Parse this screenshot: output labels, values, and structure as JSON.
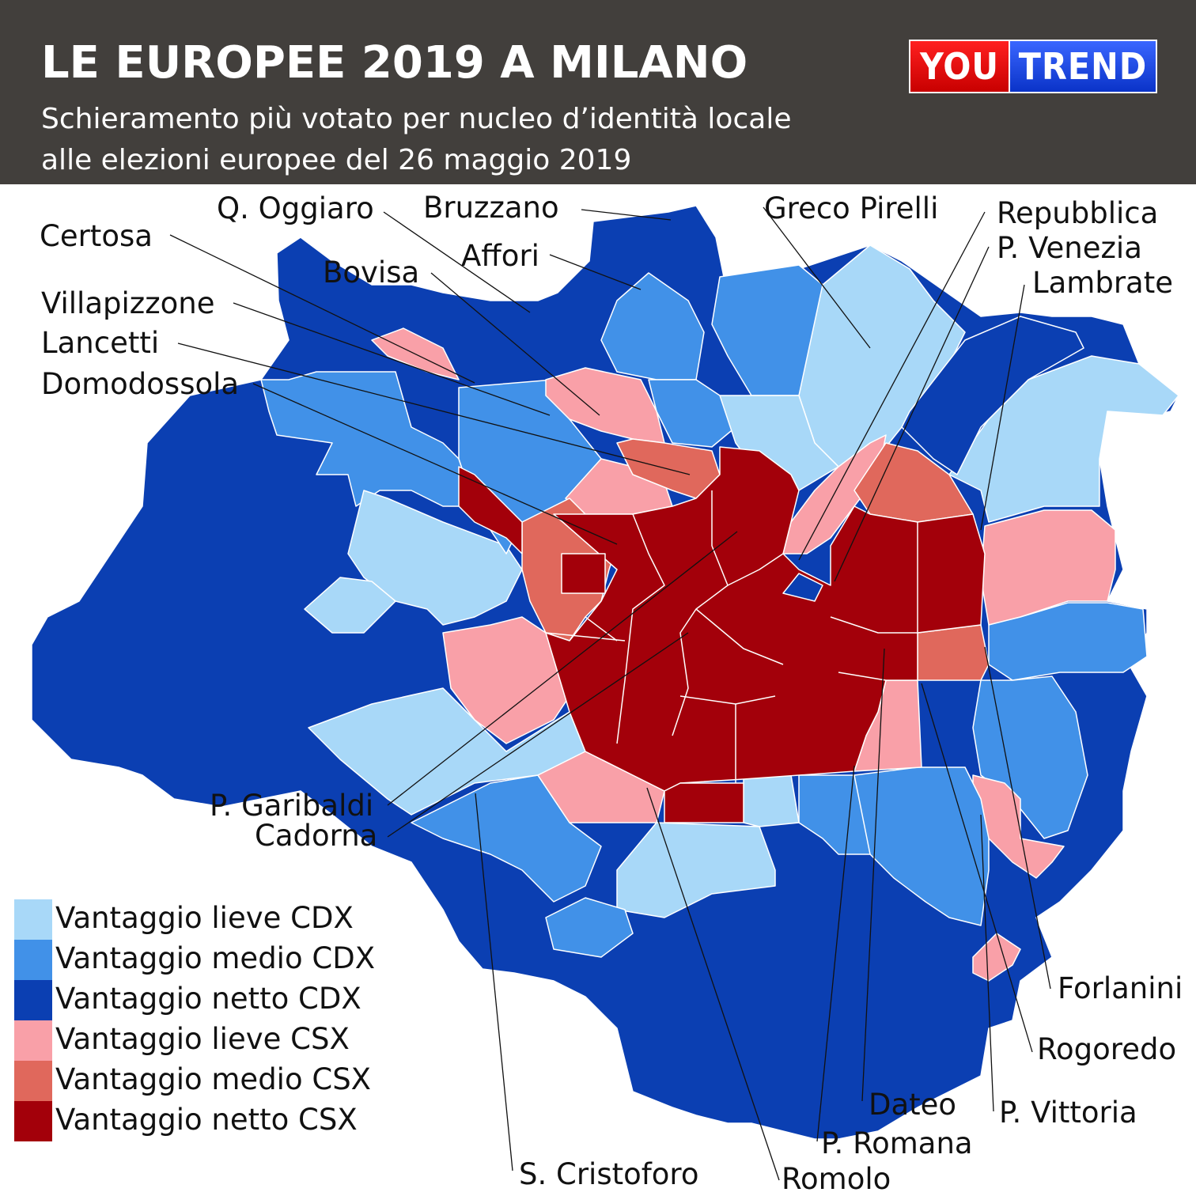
{
  "header": {
    "title": "LE EUROPEE 2019 A MILANO",
    "subtitle_line1": "Schieramento più votato per nucleo d’identità locale",
    "subtitle_line2": "alle elezioni europee del 26 maggio 2019",
    "background": "#423f3c"
  },
  "logo": {
    "part1": "YOU",
    "part2": "TREND",
    "color1": "#e00000",
    "color2": "#1d45e0"
  },
  "colors": {
    "lieve_cdx": "#a8d8f8",
    "medio_cdx": "#4191e8",
    "netto_cdx": "#0b3fb2",
    "lieve_csx": "#f9a0a8",
    "medio_csx": "#e0685c",
    "netto_csx": "#a3000a"
  },
  "legend": [
    {
      "label": "Vantaggio lieve CDX",
      "color": "#a8d8f8"
    },
    {
      "label": "Vantaggio medio CDX",
      "color": "#4191e8"
    },
    {
      "label": "Vantaggio netto CDX",
      "color": "#0b3fb2"
    },
    {
      "label": "Vantaggio lieve CSX",
      "color": "#f9a0a8"
    },
    {
      "label": "Vantaggio medio CSX",
      "color": "#e0685c"
    },
    {
      "label": "Vantaggio netto CSX",
      "color": "#a3000a"
    }
  ],
  "labels": {
    "q_oggiaro": "Q. Oggiaro",
    "bruzzano": "Bruzzano",
    "greco_pirelli": "Greco Pirelli",
    "repubblica": "Repubblica",
    "p_venezia": "P. Venezia",
    "lambrate": "Lambrate",
    "certosa": "Certosa",
    "affori": "Affori",
    "bovisa": "Bovisa",
    "villapizzone": "Villapizzone",
    "lancetti": "Lancetti",
    "domodossola": "Domodossola",
    "p_garibaldi": "P. Garibaldi",
    "cadorna": "Cadorna",
    "forlanini": "Forlanini",
    "rogoredo": "Rogoredo",
    "dateo": "Dateo",
    "p_vittoria": "P. Vittoria",
    "p_romana": "P. Romana",
    "s_cristoforo": "S. Cristoforo",
    "romolo": "Romolo"
  }
}
